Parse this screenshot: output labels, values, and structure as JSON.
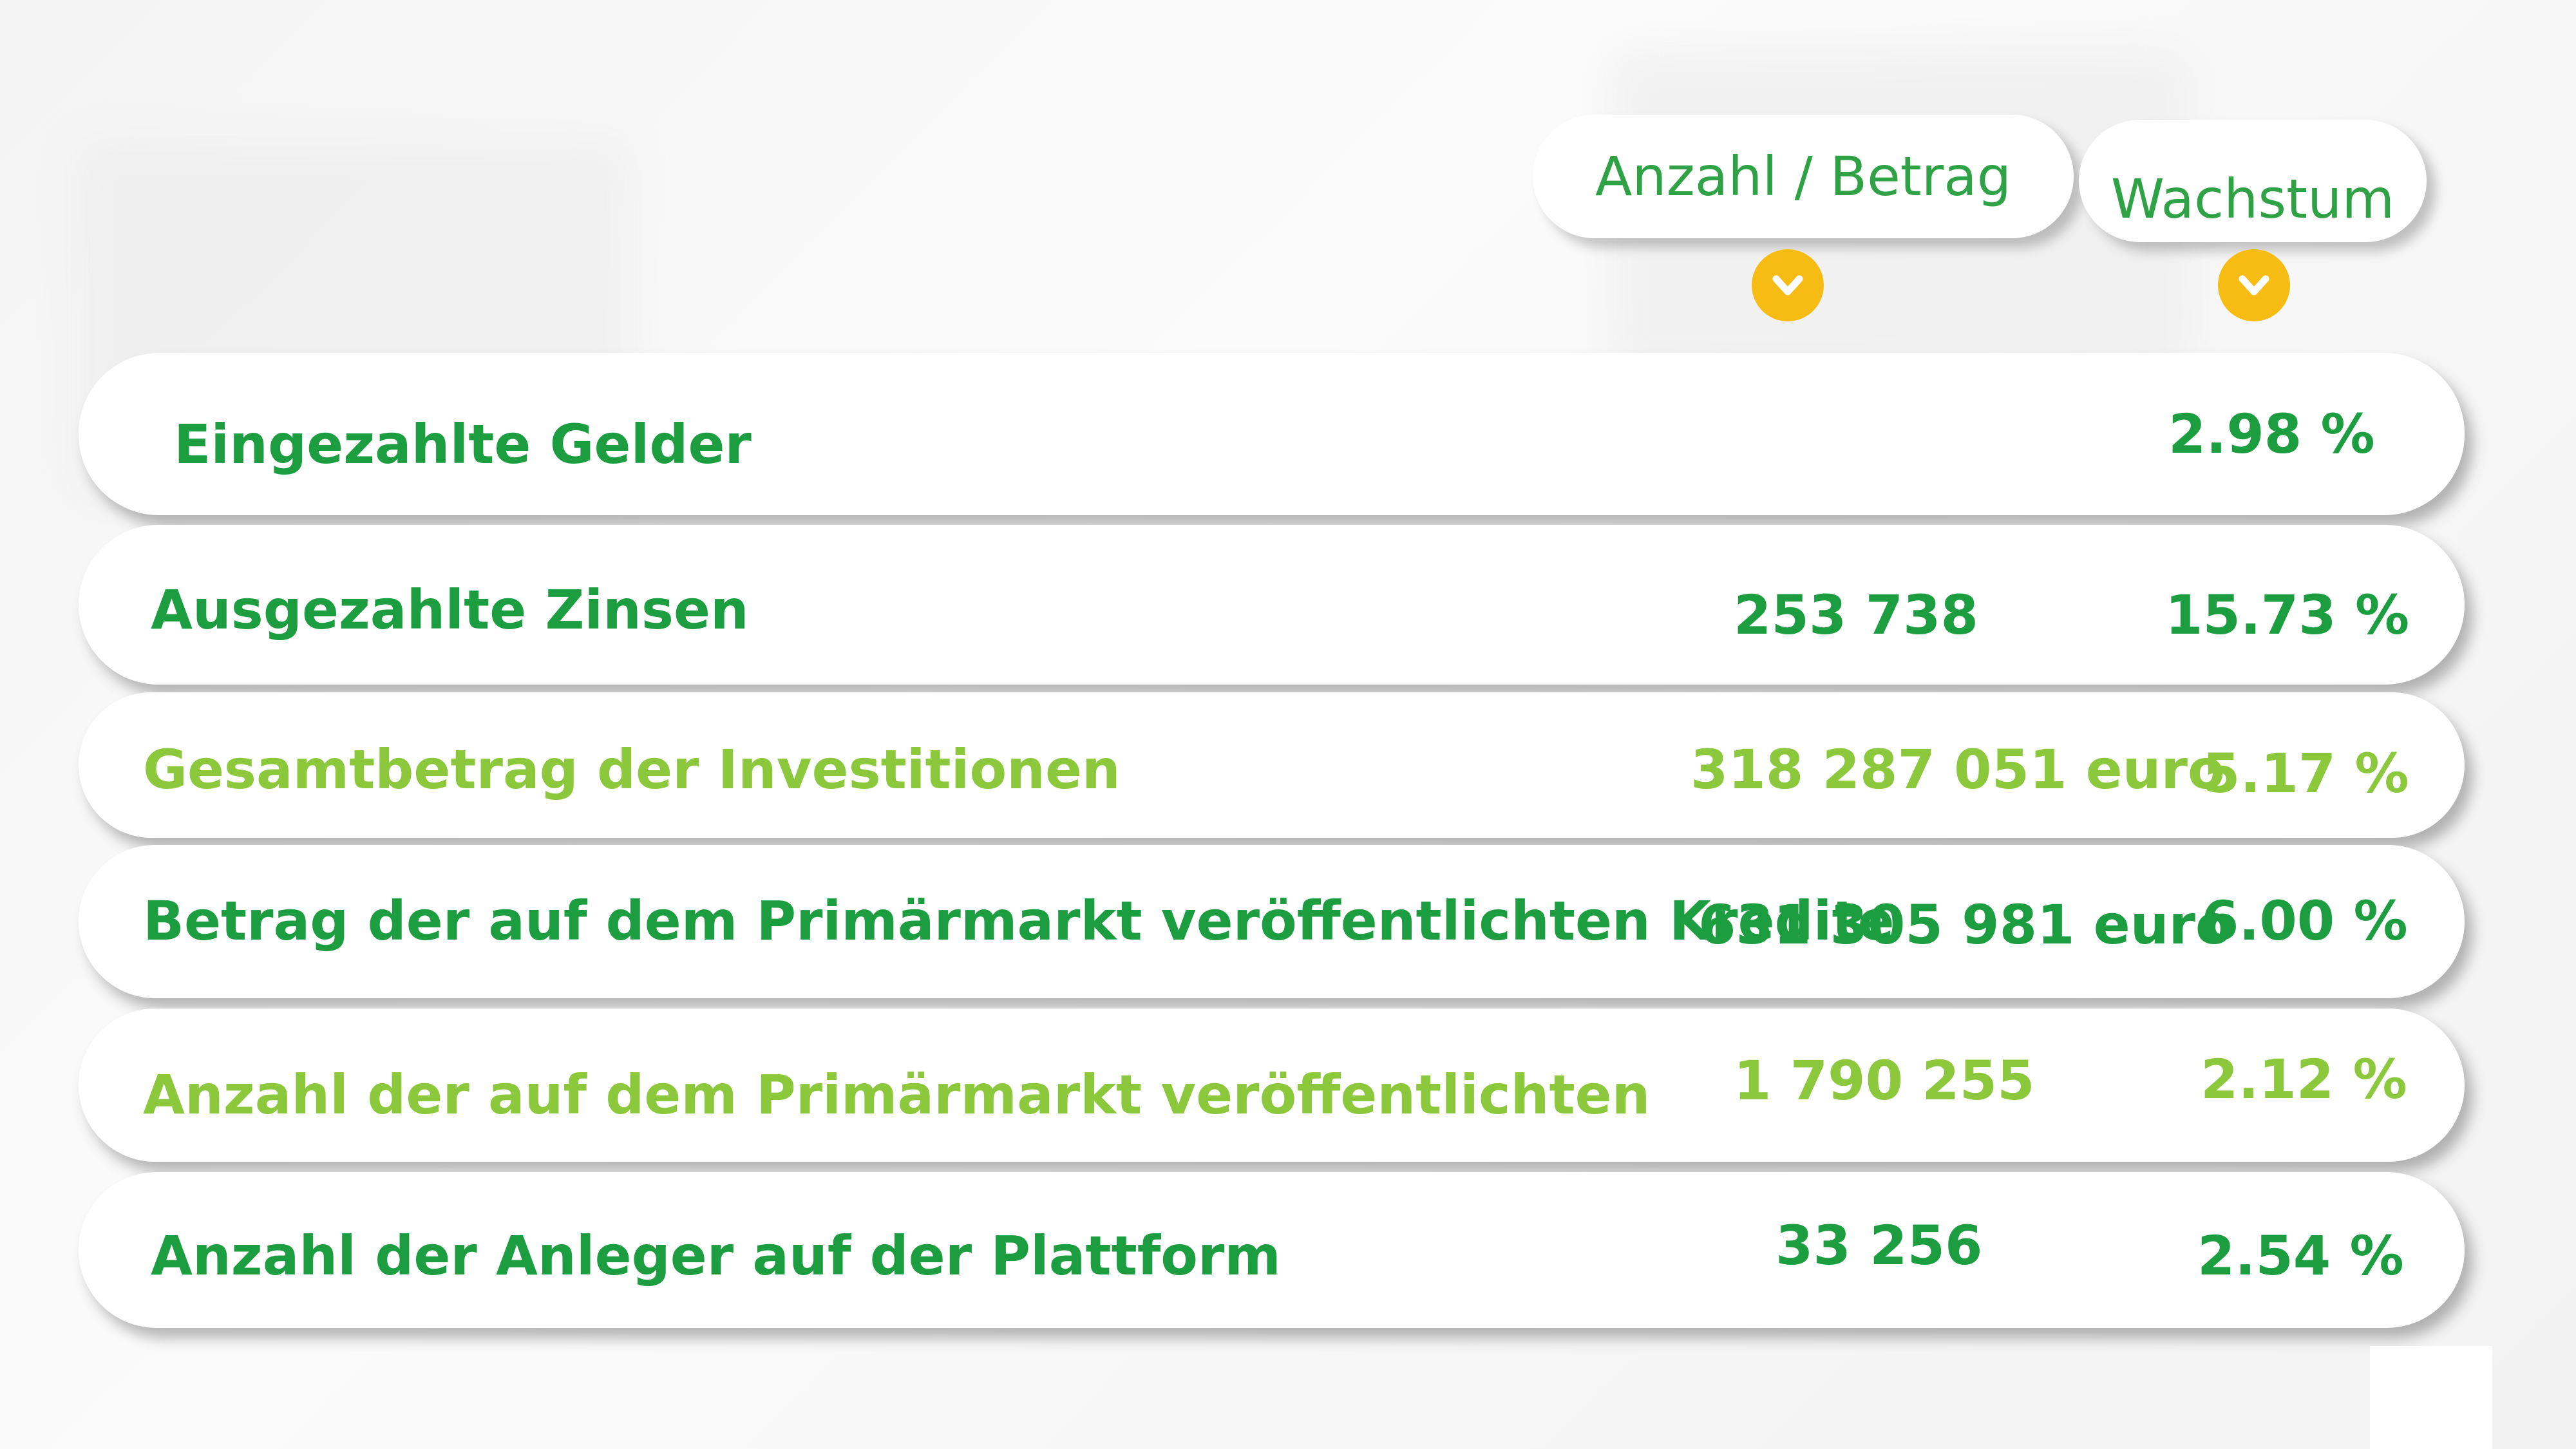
{
  "header": {
    "amount_label": "Anzahl / Betrag",
    "growth_label": "Wachstum"
  },
  "rows": [
    {
      "label": "Eingezahlte Gelder",
      "amount": "",
      "growth": "2.98 %",
      "tone": "dark"
    },
    {
      "label": "Ausgezahlte Zinsen",
      "amount": "253 738",
      "growth": "15.73 %",
      "tone": "dark"
    },
    {
      "label": "Gesamtbetrag der Investitionen",
      "amount": "318 287 051 euro",
      "growth": "5.17 %",
      "tone": "light"
    },
    {
      "label": "Betrag der auf dem Primärmarkt veröffentlichten Kredite",
      "amount": "631 305 981 euro",
      "growth": "6.00 %",
      "tone": "dark"
    },
    {
      "label": "Anzahl der auf dem Primärmarkt veröffentlichten",
      "amount": "1 790 255",
      "growth": "2.12 %",
      "tone": "light"
    },
    {
      "label": "Anzahl der Anleger auf der Plattform",
      "amount": "33 256",
      "growth": "2.54 %",
      "tone": "dark"
    }
  ],
  "colors": {
    "dark_green": "#1c9e40",
    "light_green": "#8cc83c",
    "header_green": "#2ea244",
    "chevron_yellow": "#f6bc14"
  },
  "icons": [
    "chevron-down-icon",
    "chevron-down-icon"
  ]
}
